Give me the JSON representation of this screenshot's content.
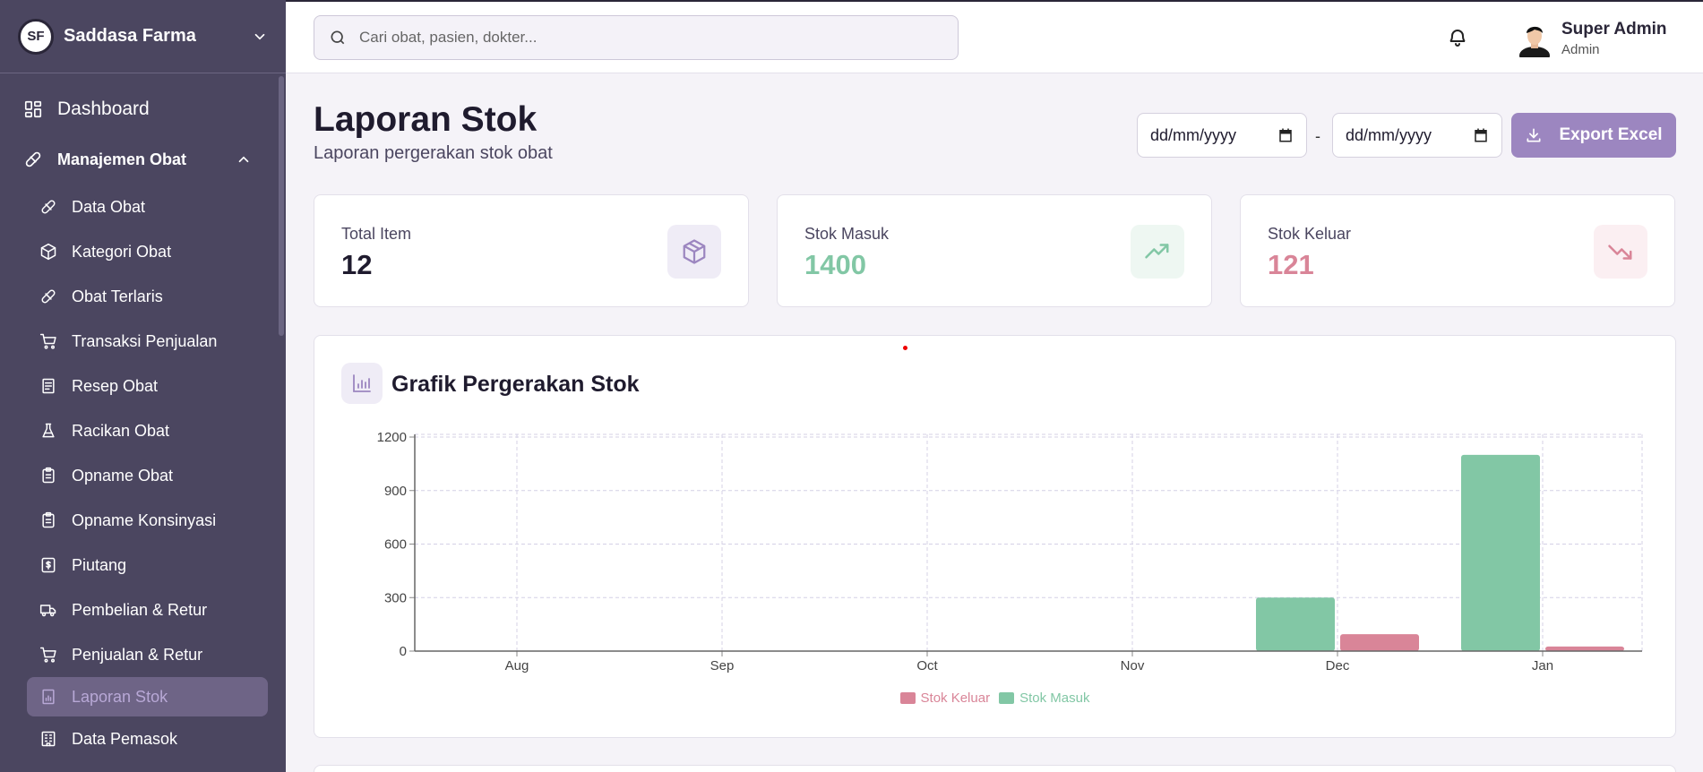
{
  "brand": {
    "name": "Saddasa Farma",
    "logo_text": "SF"
  },
  "sidebar": {
    "dashboard": {
      "label": "Dashboard",
      "icon": "grid-icon"
    },
    "group": {
      "label": "Manajemen Obat",
      "icon": "pill-icon"
    },
    "items": [
      {
        "label": "Data Obat",
        "icon": "pill-icon"
      },
      {
        "label": "Kategori Obat",
        "icon": "box-icon"
      },
      {
        "label": "Obat Terlaris",
        "icon": "pill-icon"
      },
      {
        "label": "Transaksi Penjualan",
        "icon": "cart-icon"
      },
      {
        "label": "Resep Obat",
        "icon": "document-icon"
      },
      {
        "label": "Racikan Obat",
        "icon": "flask-icon"
      },
      {
        "label": "Opname Obat",
        "icon": "clipboard-icon"
      },
      {
        "label": "Opname Konsinyasi",
        "icon": "clipboard-icon"
      },
      {
        "label": "Piutang",
        "icon": "dollar-icon"
      },
      {
        "label": "Pembelian & Retur",
        "icon": "truck-icon"
      },
      {
        "label": "Penjualan & Retur",
        "icon": "cart-icon"
      },
      {
        "label": "Laporan Stok",
        "icon": "report-icon",
        "active": true
      },
      {
        "label": "Data Pemasok",
        "icon": "building-icon"
      }
    ]
  },
  "header": {
    "search_placeholder": "Cari obat, pasien, dokter...",
    "user": {
      "name": "Super Admin",
      "role": "Admin"
    }
  },
  "page": {
    "title": "Laporan Stok",
    "subtitle": "Laporan pergerakan stok obat",
    "date_from": "dd/mm/yyyy",
    "date_separator": "-",
    "date_to": "dd/mm/yyyy",
    "export_label": "Export Excel"
  },
  "cards": [
    {
      "label": "Total Item",
      "value": "12",
      "color": "#1f1b2e",
      "icon": "box-icon",
      "icon_bg": "#efecf6",
      "icon_color": "#9c86c0"
    },
    {
      "label": "Stok Masuk",
      "value": "1400",
      "color": "#82c7a5",
      "icon": "trending-up-icon",
      "icon_bg": "#eef7f2",
      "icon_color": "#82c7a5"
    },
    {
      "label": "Stok Keluar",
      "value": "121",
      "color": "#d98598",
      "icon": "trending-down-icon",
      "icon_bg": "#fbeff2",
      "icon_color": "#d98598"
    }
  ],
  "chart_title": "Grafik Pergerakan Stok",
  "chart_data": {
    "type": "bar",
    "categories": [
      "Aug",
      "Sep",
      "Oct",
      "Nov",
      "Dec",
      "Jan"
    ],
    "series": [
      {
        "name": "Stok Masuk",
        "color": "#82c7a5",
        "values": [
          0,
          0,
          0,
          0,
          300,
          1100
        ]
      },
      {
        "name": "Stok Keluar",
        "color": "#d98598",
        "values": [
          0,
          0,
          0,
          0,
          95,
          26
        ]
      }
    ],
    "y_ticks": [
      0,
      300,
      600,
      900,
      1200
    ],
    "ylim": [
      0,
      1200
    ],
    "grid": true,
    "legend_position": "bottom",
    "legend_order": [
      "Stok Keluar",
      "Stok Masuk"
    ]
  }
}
